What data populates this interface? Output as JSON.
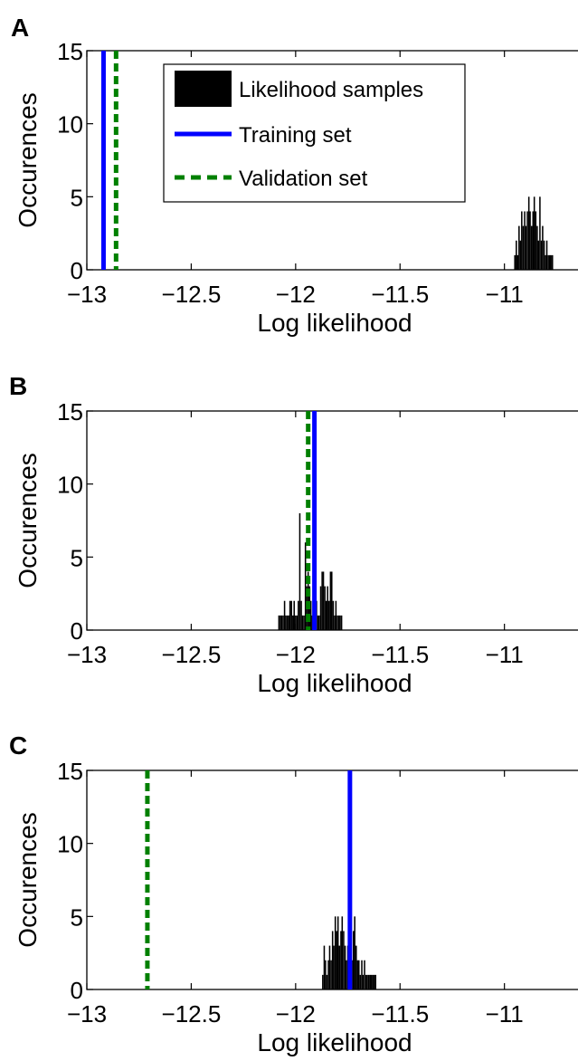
{
  "chart_data": [
    {
      "panel": "A",
      "type": "histogram",
      "xlabel": "Log likelihood",
      "ylabel": "Occurences",
      "xlim": [
        -13,
        -10.6
      ],
      "ylim": [
        0,
        15
      ],
      "xticks": [
        -13,
        -12.5,
        -12,
        -11.5,
        -11
      ],
      "xtick_labels": [
        "−13",
        "−12.5",
        "−12",
        "−11.5",
        "−11"
      ],
      "yticks": [
        0,
        5,
        10,
        15
      ],
      "ytick_labels": [
        "0",
        "5",
        "10",
        "15"
      ],
      "grid": false,
      "legend": {
        "placement": "top-left",
        "entries": [
          {
            "label": "Likelihood samples",
            "kind": "bar",
            "color": "#000000"
          },
          {
            "label": "Training set",
            "kind": "solid",
            "color": "#0000ff"
          },
          {
            "label": "Validation set",
            "kind": "dashed",
            "color": "#008000"
          }
        ]
      },
      "histogram": {
        "name": "Likelihood samples",
        "color": "#000000",
        "bin_width": 0.0067,
        "bins": [
          [
            -10.95,
            1
          ],
          [
            -10.943,
            2
          ],
          [
            -10.937,
            1
          ],
          [
            -10.93,
            3
          ],
          [
            -10.923,
            2
          ],
          [
            -10.917,
            4
          ],
          [
            -10.91,
            3
          ],
          [
            -10.903,
            4
          ],
          [
            -10.897,
            3
          ],
          [
            -10.89,
            4
          ],
          [
            -10.883,
            5
          ],
          [
            -10.877,
            4
          ],
          [
            -10.87,
            3
          ],
          [
            -10.863,
            4
          ],
          [
            -10.857,
            5
          ],
          [
            -10.85,
            4
          ],
          [
            -10.843,
            3
          ],
          [
            -10.837,
            2
          ],
          [
            -10.83,
            5
          ],
          [
            -10.823,
            2
          ],
          [
            -10.817,
            3
          ],
          [
            -10.81,
            2
          ],
          [
            -10.803,
            1
          ],
          [
            -10.797,
            2
          ],
          [
            -10.79,
            1
          ],
          [
            -10.783,
            1
          ],
          [
            -10.777,
            1
          ],
          [
            -10.77,
            1
          ]
        ]
      },
      "vlines": [
        {
          "name": "Training set",
          "x": -12.92,
          "color": "#0000ff",
          "style": "solid"
        },
        {
          "name": "Validation set",
          "x": -12.86,
          "color": "#008000",
          "style": "dashed"
        }
      ]
    },
    {
      "panel": "B",
      "type": "histogram",
      "xlabel": "Log likelihood",
      "ylabel": "Occurences",
      "xlim": [
        -13,
        -10.6
      ],
      "ylim": [
        0,
        15
      ],
      "xticks": [
        -13,
        -12.5,
        -12,
        -11.5,
        -11
      ],
      "xtick_labels": [
        "−13",
        "−12.5",
        "−12",
        "−11.5",
        "−11"
      ],
      "yticks": [
        0,
        5,
        10,
        15
      ],
      "ytick_labels": [
        "0",
        "5",
        "10",
        "15"
      ],
      "grid": false,
      "histogram": {
        "name": "Likelihood samples",
        "color": "#000000",
        "bin_width": 0.0067,
        "bins": [
          [
            -12.08,
            1
          ],
          [
            -12.073,
            1
          ],
          [
            -12.067,
            1
          ],
          [
            -12.06,
            1
          ],
          [
            -12.053,
            2
          ],
          [
            -12.047,
            1
          ],
          [
            -12.04,
            1
          ],
          [
            -12.033,
            1
          ],
          [
            -12.027,
            2
          ],
          [
            -12.02,
            2
          ],
          [
            -12.013,
            1
          ],
          [
            -12.007,
            2
          ],
          [
            -12.0,
            1
          ],
          [
            -11.993,
            1
          ],
          [
            -11.987,
            2
          ],
          [
            -11.98,
            8
          ],
          [
            -11.973,
            2
          ],
          [
            -11.967,
            1
          ],
          [
            -11.96,
            1
          ],
          [
            -11.953,
            6
          ],
          [
            -11.947,
            3
          ],
          [
            -11.94,
            4
          ],
          [
            -11.933,
            3
          ],
          [
            -11.927,
            2
          ],
          [
            -11.92,
            1
          ],
          [
            -11.913,
            2
          ],
          [
            -11.907,
            1
          ],
          [
            -11.9,
            2
          ],
          [
            -11.893,
            1
          ],
          [
            -11.887,
            1
          ],
          [
            -11.88,
            3
          ],
          [
            -11.873,
            4
          ],
          [
            -11.867,
            4
          ],
          [
            -11.86,
            3
          ],
          [
            -11.853,
            2
          ],
          [
            -11.847,
            3
          ],
          [
            -11.84,
            2
          ],
          [
            -11.833,
            4
          ],
          [
            -11.827,
            4
          ],
          [
            -11.82,
            2
          ],
          [
            -11.813,
            1
          ],
          [
            -11.807,
            2
          ],
          [
            -11.8,
            1
          ],
          [
            -11.793,
            1
          ],
          [
            -11.787,
            1
          ],
          [
            -11.78,
            1
          ]
        ]
      },
      "vlines": [
        {
          "name": "Training set",
          "x": -11.91,
          "color": "#0000ff",
          "style": "solid"
        },
        {
          "name": "Validation set",
          "x": -11.94,
          "color": "#008000",
          "style": "dashed"
        }
      ]
    },
    {
      "panel": "C",
      "type": "histogram",
      "xlabel": "Log likelihood",
      "ylabel": "Occurences",
      "xlim": [
        -13,
        -10.6
      ],
      "ylim": [
        0,
        15
      ],
      "xticks": [
        -13,
        -12.5,
        -12,
        -11.5,
        -11
      ],
      "xtick_labels": [
        "−13",
        "−12.5",
        "−12",
        "−11.5",
        "−11"
      ],
      "yticks": [
        0,
        5,
        10,
        15
      ],
      "ytick_labels": [
        "0",
        "5",
        "10",
        "15"
      ],
      "grid": false,
      "histogram": {
        "name": "Likelihood samples",
        "color": "#000000",
        "bin_width": 0.0067,
        "bins": [
          [
            -11.87,
            1
          ],
          [
            -11.863,
            3
          ],
          [
            -11.857,
            2
          ],
          [
            -11.85,
            1
          ],
          [
            -11.843,
            2
          ],
          [
            -11.837,
            3
          ],
          [
            -11.83,
            2
          ],
          [
            -11.823,
            4
          ],
          [
            -11.817,
            3
          ],
          [
            -11.81,
            5
          ],
          [
            -11.803,
            4
          ],
          [
            -11.797,
            5
          ],
          [
            -11.79,
            3
          ],
          [
            -11.783,
            4
          ],
          [
            -11.777,
            5
          ],
          [
            -11.77,
            4
          ],
          [
            -11.763,
            3
          ],
          [
            -11.757,
            2
          ],
          [
            -11.75,
            3
          ],
          [
            -11.743,
            2
          ],
          [
            -11.737,
            1
          ],
          [
            -11.73,
            2
          ],
          [
            -11.723,
            4
          ],
          [
            -11.717,
            5
          ],
          [
            -11.71,
            3
          ],
          [
            -11.703,
            2
          ],
          [
            -11.697,
            2
          ],
          [
            -11.69,
            1
          ],
          [
            -11.683,
            2
          ],
          [
            -11.677,
            1
          ],
          [
            -11.67,
            2
          ],
          [
            -11.663,
            1
          ],
          [
            -11.657,
            1
          ],
          [
            -11.65,
            1
          ],
          [
            -11.643,
            1
          ],
          [
            -11.637,
            1
          ],
          [
            -11.63,
            1
          ],
          [
            -11.623,
            1
          ],
          [
            -11.617,
            1
          ]
        ]
      },
      "vlines": [
        {
          "name": "Training set",
          "x": -11.74,
          "color": "#0000ff",
          "style": "solid"
        },
        {
          "name": "Validation set",
          "x": -12.71,
          "color": "#008000",
          "style": "dashed"
        }
      ]
    }
  ]
}
